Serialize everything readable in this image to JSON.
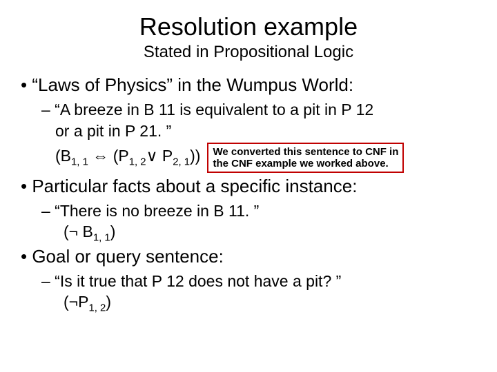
{
  "title": "Resolution example",
  "subtitle": "Stated in Propositional Logic",
  "colors": {
    "text": "#000000",
    "background": "#ffffff",
    "note_border": "#c00000"
  },
  "bullets": [
    {
      "text": "“Laws of Physics” in the Wumpus World:",
      "sub": {
        "quote_line1": "– “A breeze in B 11 is equivalent to a pit in P 12",
        "quote_line2": "or a pit in P 21. ”",
        "formula_pre": "(B",
        "formula_mid1": " ⇔ (P",
        "formula_mid2": "∨ P",
        "formula_post": "))",
        "sub11": "1, 1",
        "sub12": "1, 2",
        "sub21": "2, 1",
        "note_l1": "We converted this sentence to CNF in",
        "note_l2": "the CNF example we worked above."
      }
    },
    {
      "text": "Particular facts about a specific instance:",
      "sub": {
        "quote": "– “There is no breeze in B 11. ”",
        "formula_pre": "(¬ B",
        "formula_post": ")",
        "sub11": "1, 1"
      }
    },
    {
      "text": "Goal or query sentence:",
      "sub": {
        "quote": "– “Is it true that P 12 does not have a pit? ”",
        "formula_pre": "(¬P",
        "formula_post": ")",
        "sub12": "1, 2"
      }
    }
  ]
}
